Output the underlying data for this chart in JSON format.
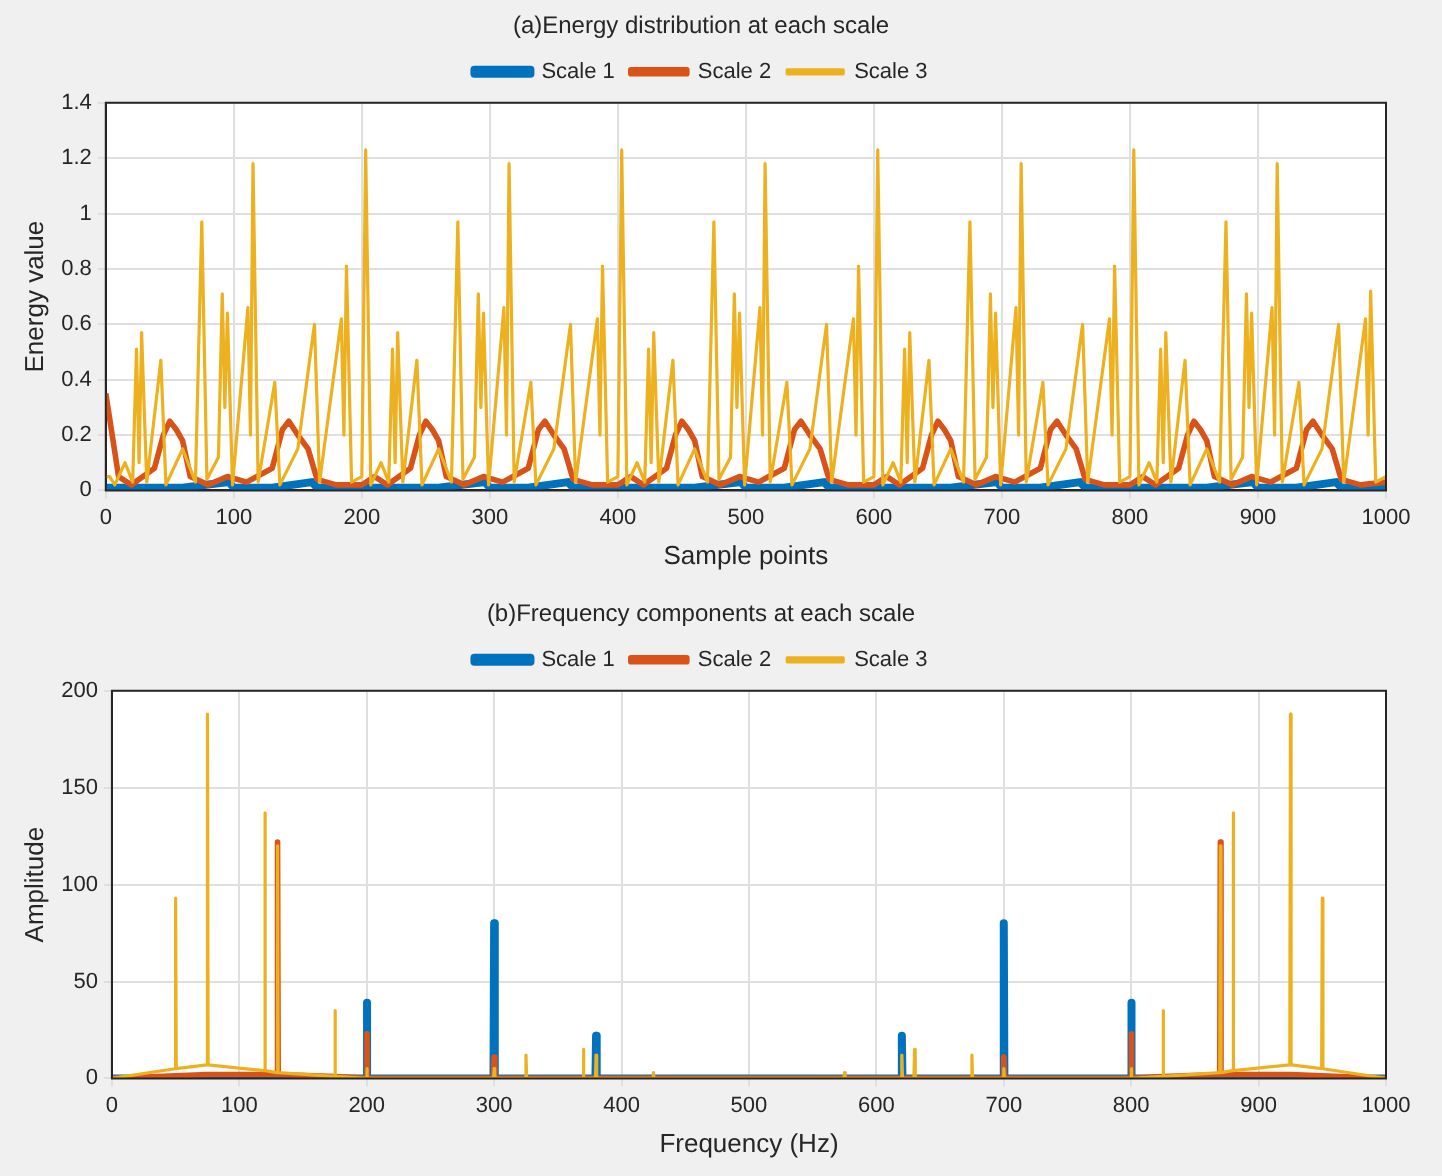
{
  "chart_data": [
    {
      "type": "line",
      "title": "(a)Energy distribution at each scale",
      "xlabel": "Sample points",
      "ylabel": "Energy value",
      "xlim": [
        0,
        1000
      ],
      "xticks": [
        0,
        100,
        200,
        300,
        400,
        500,
        600,
        700,
        800,
        900,
        1000
      ],
      "ylim": [
        0,
        1.4
      ],
      "yticks": [
        0,
        0.2,
        0.4,
        0.6,
        0.8,
        1,
        1.2,
        1.4
      ],
      "grid": true,
      "legend": "top",
      "series": [
        {
          "name": "Scale 1",
          "color": "#0072bd",
          "x": [
            0,
            30,
            60,
            96,
            100,
            130,
            161,
            165,
            200,
            230,
            260,
            296,
            300,
            330,
            361,
            365,
            400,
            430,
            460,
            496,
            500,
            530,
            561,
            565,
            600,
            630,
            660,
            696,
            700,
            730,
            761,
            765,
            800,
            830,
            860,
            896,
            900,
            930,
            961,
            965,
            1000
          ],
          "values": [
            0.01,
            0.01,
            0.01,
            0.03,
            0.01,
            0.01,
            0.03,
            0.01,
            0.01,
            0.01,
            0.01,
            0.03,
            0.01,
            0.01,
            0.03,
            0.01,
            0.01,
            0.01,
            0.01,
            0.03,
            0.01,
            0.01,
            0.03,
            0.01,
            0.01,
            0.01,
            0.01,
            0.03,
            0.01,
            0.01,
            0.03,
            0.01,
            0.01,
            0.01,
            0.01,
            0.03,
            0.01,
            0.01,
            0.03,
            0.01,
            0.01
          ]
        },
        {
          "name": "Scale 2",
          "color": "#d95319",
          "x": [
            0,
            10,
            20,
            38,
            45,
            50,
            55,
            60,
            66,
            80,
            95,
            110,
            130,
            138,
            143,
            150,
            158,
            165,
            180,
            200,
            210,
            220,
            238,
            245,
            250,
            255,
            260,
            266,
            280,
            295,
            310,
            330,
            338,
            343,
            350,
            358,
            365,
            380,
            400,
            410,
            420,
            438,
            445,
            450,
            455,
            460,
            466,
            480,
            495,
            510,
            530,
            538,
            543,
            550,
            558,
            565,
            580,
            600,
            610,
            620,
            638,
            645,
            650,
            655,
            660,
            666,
            680,
            695,
            710,
            730,
            738,
            743,
            750,
            758,
            765,
            780,
            800,
            810,
            820,
            838,
            845,
            850,
            855,
            860,
            866,
            880,
            895,
            910,
            930,
            938,
            943,
            950,
            958,
            965,
            980,
            1000
          ],
          "values": [
            0.35,
            0.05,
            0.02,
            0.08,
            0.2,
            0.25,
            0.22,
            0.18,
            0.05,
            0.02,
            0.05,
            0.03,
            0.08,
            0.22,
            0.25,
            0.2,
            0.15,
            0.04,
            0.02,
            0.02,
            0.05,
            0.02,
            0.08,
            0.2,
            0.25,
            0.22,
            0.18,
            0.05,
            0.02,
            0.05,
            0.03,
            0.08,
            0.22,
            0.25,
            0.2,
            0.15,
            0.04,
            0.02,
            0.02,
            0.05,
            0.02,
            0.08,
            0.2,
            0.25,
            0.22,
            0.18,
            0.05,
            0.02,
            0.05,
            0.03,
            0.08,
            0.22,
            0.25,
            0.2,
            0.15,
            0.04,
            0.02,
            0.02,
            0.05,
            0.02,
            0.08,
            0.2,
            0.25,
            0.22,
            0.18,
            0.05,
            0.02,
            0.05,
            0.03,
            0.08,
            0.22,
            0.25,
            0.2,
            0.15,
            0.04,
            0.02,
            0.02,
            0.05,
            0.02,
            0.08,
            0.2,
            0.25,
            0.22,
            0.18,
            0.05,
            0.02,
            0.05,
            0.03,
            0.08,
            0.22,
            0.25,
            0.2,
            0.15,
            0.04,
            0.02,
            0.03
          ]
        },
        {
          "name": "Scale 3",
          "color": "#edb120",
          "x": [
            0,
            3,
            7,
            15,
            21,
            24,
            26,
            28,
            32,
            43,
            47,
            60,
            70,
            75,
            79,
            88,
            91,
            93,
            95,
            99,
            111,
            113,
            115,
            119,
            132,
            136,
            150,
            163,
            167,
            184,
            186,
            188,
            192,
            200,
            203,
            207,
            215,
            221,
            224,
            226,
            228,
            232,
            243,
            247,
            260,
            270,
            275,
            279,
            288,
            291,
            293,
            295,
            299,
            311,
            313,
            315,
            319,
            332,
            336,
            350,
            363,
            367,
            384,
            386,
            388,
            392,
            400,
            403,
            407,
            415,
            421,
            424,
            426,
            428,
            432,
            443,
            447,
            460,
            470,
            475,
            479,
            488,
            491,
            493,
            495,
            499,
            511,
            513,
            515,
            519,
            532,
            536,
            550,
            563,
            567,
            584,
            586,
            588,
            592,
            600,
            603,
            607,
            615,
            621,
            624,
            626,
            628,
            632,
            643,
            647,
            660,
            670,
            675,
            679,
            688,
            691,
            693,
            695,
            699,
            711,
            713,
            715,
            719,
            732,
            736,
            750,
            763,
            767,
            784,
            786,
            788,
            792,
            800,
            803,
            807,
            815,
            821,
            824,
            826,
            828,
            832,
            843,
            847,
            860,
            870,
            875,
            879,
            888,
            891,
            893,
            895,
            899,
            911,
            913,
            915,
            919,
            932,
            936,
            950,
            963,
            967,
            984,
            986,
            988,
            992,
            1000
          ],
          "values": [
            0.05,
            0.05,
            0.02,
            0.1,
            0.03,
            0.51,
            0.1,
            0.57,
            0.03,
            0.47,
            0.02,
            0.15,
            0.03,
            0.97,
            0.04,
            0.12,
            0.71,
            0.3,
            0.64,
            0.02,
            0.66,
            0.2,
            1.18,
            0.03,
            0.39,
            0.02,
            0.15,
            0.6,
            0.03,
            0.62,
            0.2,
            0.81,
            0.03,
            0.05,
            1.23,
            0.02,
            0.1,
            0.03,
            0.51,
            0.1,
            0.57,
            0.03,
            0.47,
            0.02,
            0.15,
            0.03,
            0.97,
            0.04,
            0.12,
            0.71,
            0.3,
            0.64,
            0.02,
            0.66,
            0.2,
            1.18,
            0.03,
            0.39,
            0.02,
            0.15,
            0.6,
            0.03,
            0.62,
            0.2,
            0.81,
            0.03,
            0.05,
            1.23,
            0.02,
            0.1,
            0.03,
            0.51,
            0.1,
            0.57,
            0.03,
            0.47,
            0.02,
            0.15,
            0.03,
            0.97,
            0.04,
            0.12,
            0.71,
            0.3,
            0.64,
            0.02,
            0.66,
            0.2,
            1.18,
            0.03,
            0.39,
            0.02,
            0.15,
            0.6,
            0.03,
            0.62,
            0.2,
            0.81,
            0.03,
            0.05,
            1.23,
            0.02,
            0.1,
            0.03,
            0.51,
            0.1,
            0.57,
            0.03,
            0.47,
            0.02,
            0.15,
            0.03,
            0.97,
            0.04,
            0.12,
            0.71,
            0.3,
            0.64,
            0.02,
            0.66,
            0.2,
            1.18,
            0.03,
            0.39,
            0.02,
            0.15,
            0.6,
            0.03,
            0.62,
            0.2,
            0.81,
            0.03,
            0.05,
            1.23,
            0.02,
            0.1,
            0.03,
            0.51,
            0.1,
            0.57,
            0.03,
            0.47,
            0.02,
            0.15,
            0.03,
            0.97,
            0.04,
            0.12,
            0.71,
            0.3,
            0.64,
            0.02,
            0.66,
            0.2,
            1.18,
            0.03,
            0.39,
            0.02,
            0.15,
            0.6,
            0.03,
            0.62,
            0.2,
            0.72,
            0.03,
            0.05
          ]
        }
      ]
    },
    {
      "type": "line",
      "title": "(b)Frequency components at each scale",
      "xlabel": "Frequency (Hz)",
      "ylabel": "Amplitude",
      "xlim": [
        0,
        1000
      ],
      "xticks": [
        0,
        100,
        200,
        300,
        400,
        500,
        600,
        700,
        800,
        900,
        1000
      ],
      "ylim": [
        0,
        200
      ],
      "yticks": [
        0,
        50,
        100,
        150,
        200
      ],
      "grid": true,
      "legend": "top",
      "series": [
        {
          "name": "Scale 1",
          "color": "#0072bd",
          "x": [
            0,
            199.5,
            200,
            200.5,
            299.5,
            300,
            300.5,
            379.5,
            380,
            380.5,
            619.5,
            620,
            620.5,
            699.5,
            700,
            700.5,
            799.5,
            800,
            800.5,
            1000
          ],
          "values": [
            0,
            0,
            39,
            0,
            0,
            80,
            0,
            0,
            22,
            0,
            0,
            22,
            0,
            0,
            80,
            0,
            0,
            39,
            0,
            0
          ]
        },
        {
          "name": "Scale 2",
          "color": "#d95319",
          "x": [
            0,
            75,
            129.5,
            130,
            130.5,
            175,
            199.5,
            200,
            200.5,
            299.5,
            300,
            300.5,
            699.5,
            700,
            700.5,
            799.5,
            800,
            800.5,
            825,
            869.5,
            870,
            870.5,
            925,
            1000
          ],
          "values": [
            0,
            2,
            2,
            122,
            2,
            1,
            0,
            23,
            0,
            0,
            11,
            0,
            0,
            11,
            0,
            0,
            23,
            0,
            1,
            2,
            122,
            2,
            2,
            0
          ]
        },
        {
          "name": "Scale 3",
          "color": "#edb120",
          "x": [
            0,
            49.5,
            50,
            50.5,
            74.5,
            75,
            75.5,
            119.5,
            120,
            120.5,
            129.5,
            130,
            130.5,
            174.5,
            175,
            175.5,
            199.5,
            200,
            200.5,
            299.5,
            300,
            300.5,
            324.5,
            325,
            325.5,
            369.5,
            370,
            370.5,
            379.5,
            380,
            380.5,
            424.5,
            425,
            425.5,
            574.5,
            575,
            575.5,
            619.5,
            620,
            620.5,
            629.5,
            630,
            630.5,
            674.5,
            675,
            675.5,
            699.5,
            700,
            700.5,
            799.5,
            800,
            800.5,
            824.5,
            825,
            825.5,
            869.5,
            870,
            870.5,
            879.5,
            880,
            880.5,
            924.5,
            925,
            925.5,
            949.5,
            950,
            950.5,
            1000
          ],
          "values": [
            0,
            5,
            93,
            5,
            7,
            188,
            7,
            4,
            137,
            4,
            3,
            120,
            3,
            1,
            35,
            1,
            0,
            5,
            0,
            0,
            5,
            0,
            0,
            12,
            0,
            0,
            15,
            0,
            0,
            12,
            0,
            0,
            3,
            0,
            0,
            3,
            0,
            0,
            12,
            0,
            0,
            15,
            0,
            0,
            12,
            0,
            0,
            5,
            0,
            0,
            5,
            0,
            1,
            35,
            1,
            3,
            120,
            3,
            4,
            137,
            4,
            7,
            188,
            7,
            5,
            93,
            5,
            0
          ]
        }
      ]
    }
  ]
}
